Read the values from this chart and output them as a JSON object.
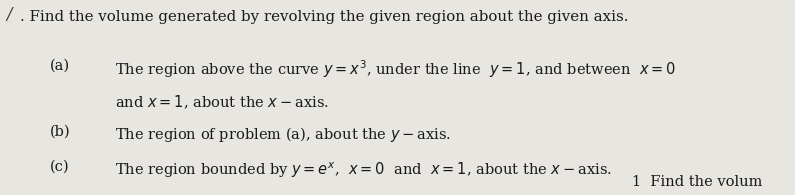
{
  "background_color": "#e8e6e0",
  "title_line": ". Find the volume generated by revolving the given region about the given axis.",
  "items": [
    {
      "label": "(a)",
      "line1": "The region above the curve $y=x^3$, under the line  $y=1$, and between  $x=0$",
      "line2": "and $x=1$, about the $x-$axis."
    },
    {
      "label": "(b)",
      "line1": "The region of problem (a), about the $y-$axis.",
      "line2": null
    },
    {
      "label": "(c)",
      "line1": "The region bounded by $y=e^x$,  $x=0$  and  $x=1$, about the $x-$axis.",
      "line2": null
    }
  ],
  "bottom_text": "1  Find the volum",
  "fontsize": 10.5,
  "title_fontsize": 10.8
}
